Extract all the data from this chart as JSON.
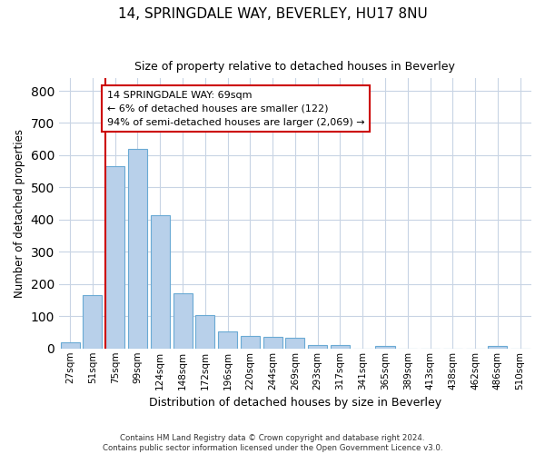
{
  "title1": "14, SPRINGDALE WAY, BEVERLEY, HU17 8NU",
  "title2": "Size of property relative to detached houses in Beverley",
  "xlabel": "Distribution of detached houses by size in Beverley",
  "ylabel": "Number of detached properties",
  "categories": [
    "27sqm",
    "51sqm",
    "75sqm",
    "99sqm",
    "124sqm",
    "148sqm",
    "172sqm",
    "196sqm",
    "220sqm",
    "244sqm",
    "269sqm",
    "293sqm",
    "317sqm",
    "341sqm",
    "365sqm",
    "389sqm",
    "413sqm",
    "438sqm",
    "462sqm",
    "486sqm",
    "510sqm"
  ],
  "values": [
    20,
    165,
    565,
    620,
    415,
    170,
    103,
    52,
    40,
    35,
    32,
    12,
    10,
    0,
    7,
    0,
    0,
    0,
    0,
    8,
    0
  ],
  "bar_color": "#b8d0ea",
  "bar_edge_color": "#6aaad4",
  "vline_color": "#cc0000",
  "annotation_text": "14 SPRINGDALE WAY: 69sqm\n← 6% of detached houses are smaller (122)\n94% of semi-detached houses are larger (2,069) →",
  "annotation_box_color": "white",
  "annotation_box_edge": "#cc0000",
  "ylim": [
    0,
    840
  ],
  "yticks": [
    0,
    100,
    200,
    300,
    400,
    500,
    600,
    700,
    800
  ],
  "footnote": "Contains HM Land Registry data © Crown copyright and database right 2024.\nContains public sector information licensed under the Open Government Licence v3.0.",
  "bg_color": "#ffffff",
  "grid_color": "#c8d4e4"
}
